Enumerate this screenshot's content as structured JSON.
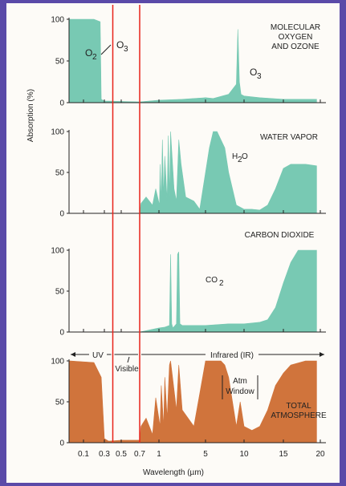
{
  "chart_data": {
    "type": "area",
    "ylabel": "Absorption (%)",
    "xlabel": "Wavelength (µm)",
    "x_tick_labels": [
      "0.1",
      "0.3",
      "0.5",
      "0.7",
      "1",
      "5",
      "10",
      "15",
      "20"
    ],
    "y_tick_labels": [
      "0",
      "50",
      "100"
    ],
    "ylim": [
      0,
      100
    ],
    "reference_lines_um": [
      0.4,
      0.7
    ],
    "colors": {
      "absorption": "#78c9b3",
      "total": "#d0743c",
      "reference": "#e8231a"
    },
    "panels": [
      {
        "title": "MOLECULAR OXYGEN AND OZONE",
        "title_lines": [
          "MOLECULAR",
          "OXYGEN",
          "AND OZONE"
        ],
        "annotations": [
          "O2",
          "O3",
          "O3"
        ],
        "series": [
          {
            "name": "O2 / O3",
            "x": [
              0.08,
              0.2,
              0.26,
              0.27,
              0.3,
              0.7,
              1,
              3,
              4,
              5,
              6,
              8,
              9,
              9.2,
              9.4,
              9.6,
              10,
              12,
              15,
              19.5
            ],
            "y": [
              100,
              100,
              97,
              4,
              2,
              1,
              3,
              4,
              5,
              6,
              5,
              10,
              22,
              88,
              25,
              10,
              8,
              6,
              4,
              4
            ]
          }
        ]
      },
      {
        "title": "WATER VAPOR",
        "title_lines": [
          "WATER VAPOR"
        ],
        "annotations": [
          "H2O"
        ],
        "series": [
          {
            "name": "H2O",
            "x": [
              0.08,
              0.7,
              0.72,
              0.8,
              0.9,
              0.95,
              1.05,
              1.1,
              1.2,
              1.3,
              1.4,
              1.5,
              1.7,
              1.8,
              1.9,
              2.0,
              2.3,
              2.5,
              2.7,
              2.9,
              3.3,
              4.0,
              4.5,
              5.5,
              6,
              6.5,
              7,
              7.5,
              8,
              9,
              10,
              11,
              12,
              13,
              14,
              15,
              16,
              18,
              19.5
            ],
            "y": [
              0,
              0,
              12,
              20,
              10,
              30,
              10,
              60,
              15,
              90,
              20,
              70,
              15,
              95,
              20,
              100,
              30,
              15,
              90,
              60,
              20,
              15,
              5,
              80,
              100,
              100,
              90,
              80,
              50,
              10,
              5,
              5,
              4,
              10,
              30,
              55,
              60,
              60,
              58
            ]
          }
        ]
      },
      {
        "title": "CARBON DIOXIDE",
        "title_lines": [
          "CARBON DIOXIDE"
        ],
        "annotations": [
          "CO2"
        ],
        "series": [
          {
            "name": "CO2",
            "x": [
              0.08,
              0.7,
              1,
              1.5,
              1.9,
              2.0,
              2.1,
              2.2,
              2.5,
              2.6,
              2.7,
              2.8,
              3.0,
              4,
              5,
              8,
              10,
              12,
              13,
              14,
              15,
              16,
              17,
              18,
              19.5
            ],
            "y": [
              0,
              0,
              5,
              6,
              8,
              95,
              10,
              5,
              10,
              95,
              98,
              10,
              8,
              8,
              8,
              10,
              10,
              12,
              15,
              30,
              60,
              85,
              100,
              100,
              100
            ]
          }
        ]
      },
      {
        "title": "TOTAL ATMOSPHERE",
        "title_lines": [
          "TOTAL",
          "ATMOSPHERE"
        ],
        "annotations": [
          "UV",
          "Visible",
          "Infrared (IR)",
          "Atm Window"
        ],
        "series": [
          {
            "name": "Total",
            "x": [
              0.08,
              0.2,
              0.27,
              0.3,
              0.35,
              0.5,
              0.7,
              0.72,
              0.8,
              0.9,
              0.95,
              1.1,
              1.2,
              1.4,
              1.5,
              1.7,
              1.9,
              2.0,
              2.5,
              2.7,
              3.0,
              4.0,
              4.5,
              5,
              6,
              7,
              7.5,
              8,
              9,
              9.5,
              10,
              11,
              12,
              13,
              14,
              15,
              16,
              18,
              19.5
            ],
            "y": [
              100,
              98,
              80,
              5,
              2,
              3,
              3,
              20,
              30,
              10,
              55,
              20,
              70,
              20,
              80,
              30,
              95,
              100,
              40,
              95,
              40,
              20,
              60,
              100,
              100,
              100,
              95,
              80,
              20,
              50,
              20,
              15,
              20,
              40,
              70,
              85,
              95,
              100,
              100
            ]
          }
        ]
      }
    ]
  }
}
